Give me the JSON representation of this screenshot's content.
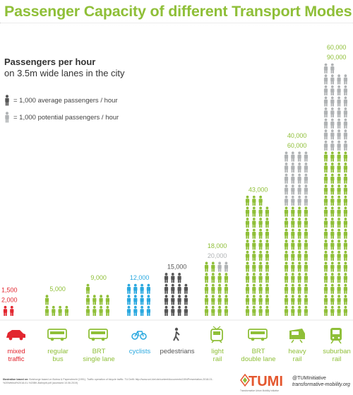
{
  "title": "Passenger Capacity of different Transport Modes",
  "subtitle_line1": "Passengers per hour",
  "subtitle_line2": "on 3.5m wide lanes in the city",
  "legend": {
    "average": "= 1,000 average passengers / hour",
    "potential": "= 1,000 potential passengers / hour"
  },
  "colors": {
    "title": "#8fbf38",
    "red": "#e2262f",
    "green": "#8fbf38",
    "blue": "#29a8df",
    "dark": "#555555",
    "grey": "#b0b3b5"
  },
  "chart_data": {
    "type": "bar",
    "unit": "1,000 passengers / hour",
    "categories": [
      "mixed traffic",
      "regular bus",
      "BRT single lane",
      "cyclists",
      "pedestrians",
      "light rail",
      "BRT double lane",
      "heavy rail",
      "suburban rail"
    ],
    "series": [
      {
        "name": "average passengers / hour",
        "values": [
          1500,
          5000,
          9000,
          12000,
          15000,
          18000,
          43000,
          40000,
          60000
        ]
      },
      {
        "name": "potential passengers / hour",
        "values": [
          2000,
          5000,
          9000,
          12000,
          15000,
          20000,
          43000,
          60000,
          90000
        ]
      }
    ],
    "value_labels": [
      [
        "1,500",
        "2,000"
      ],
      [
        "5,000"
      ],
      [
        "9,000"
      ],
      [
        "12,000"
      ],
      [
        "15,000"
      ],
      [
        "18,000",
        "20,000"
      ],
      [
        "43,000"
      ],
      [
        "40,000",
        "60,000"
      ],
      [
        "60,000",
        "90,000"
      ]
    ],
    "modes": [
      {
        "label": "mixed\ntraffic",
        "color": "red",
        "label_color": "red",
        "icon": "car-icon"
      },
      {
        "label": "regular\nbus",
        "color": "green",
        "label_color": "green",
        "icon": "bus-icon"
      },
      {
        "label": "BRT\nsingle  lane",
        "color": "green",
        "label_color": "green",
        "icon": "brt-bus-icon"
      },
      {
        "label": "cyclists",
        "color": "blue",
        "label_color": "blue",
        "icon": "bicycle-icon"
      },
      {
        "label": "pedestrians",
        "color": "dark",
        "label_color": "dark",
        "icon": "pedestrian-icon"
      },
      {
        "label": "light\nrail",
        "color": "green",
        "label_color": "green",
        "icon": "tram-icon"
      },
      {
        "label": "BRT\ndouble lane",
        "color": "green",
        "label_color": "green",
        "icon": "brt-double-bus-icon"
      },
      {
        "label": "heavy\nrail",
        "color": "green",
        "label_color": "green",
        "icon": "train-icon"
      },
      {
        "label": "suburban\nrail",
        "color": "green",
        "label_color": "green",
        "icon": "suburban-train-icon"
      }
    ]
  },
  "footer": {
    "source_label": "Illustration based on:",
    "source_text": "Botchorge based on Botma & Papendrecht (1991). Traffic operation of bicycle traffic. TU Delft: http://www.uni-kiel.de/content/documents/1594Presentation-2018-01-%20Weibull%2018-01-%20BK-Bahnpilt.pdf (accessed 10.06.2019)",
    "brand": "TUMI",
    "brand_tagline": "Transformative Urban Mobility Initiative",
    "handle": "@TUMInitiative",
    "url": "transformative-mobility.org"
  }
}
